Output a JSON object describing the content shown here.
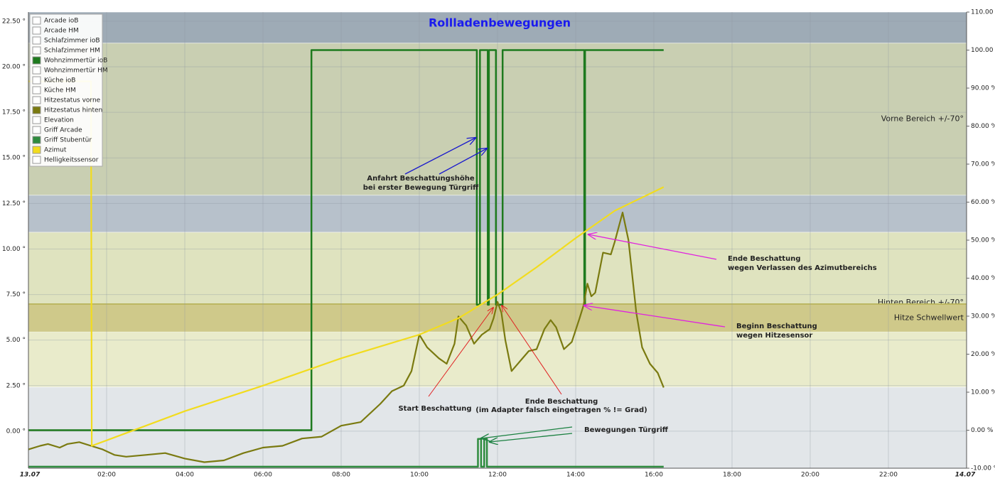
{
  "chart_data": {
    "type": "line",
    "title": "Rollladenbewegungen",
    "xlim": [
      0,
      24
    ],
    "xticks": [
      {
        "value": 0,
        "label": "13.07"
      },
      {
        "value": 2,
        "label": "02:00"
      },
      {
        "value": 4,
        "label": "04:00"
      },
      {
        "value": 6,
        "label": "06:00"
      },
      {
        "value": 8,
        "label": "08:00"
      },
      {
        "value": 10,
        "label": "10:00"
      },
      {
        "value": 12,
        "label": "12:00"
      },
      {
        "value": 14,
        "label": "14:00"
      },
      {
        "value": 16,
        "label": "16:00"
      },
      {
        "value": 18,
        "label": "18:00"
      },
      {
        "value": 20,
        "label": "20:00"
      },
      {
        "value": 22,
        "label": "22:00"
      },
      {
        "value": 24,
        "label": "14.07"
      }
    ],
    "ylim": [
      -2.03,
      23.0
    ],
    "yticks": [
      {
        "value": 0,
        "label": "0.00 °"
      },
      {
        "value": 2.5,
        "label": "2.50 °"
      },
      {
        "value": 5,
        "label": "5.00 °"
      },
      {
        "value": 7.5,
        "label": "7.50 °"
      },
      {
        "value": 10,
        "label": "10.00 °"
      },
      {
        "value": 12.5,
        "label": "12.50 °"
      },
      {
        "value": 15,
        "label": "15.00 °"
      },
      {
        "value": 17.5,
        "label": "17.50 °"
      },
      {
        "value": 20,
        "label": "20.00 °"
      },
      {
        "value": 22.5,
        "label": "22.50 °"
      }
    ],
    "y2lim": [
      -10,
      110
    ],
    "y2ticks": [
      {
        "value": -10,
        "label": "-10.00 %"
      },
      {
        "value": 0,
        "label": "0.00 %"
      },
      {
        "value": 10,
        "label": "10.00 %"
      },
      {
        "value": 20,
        "label": "20.00 %"
      },
      {
        "value": 30,
        "label": "30.00 %"
      },
      {
        "value": 40,
        "label": "40.00 %"
      },
      {
        "value": 50,
        "label": "50.00 %"
      },
      {
        "value": 60,
        "label": "60.00 %"
      },
      {
        "value": 70,
        "label": "70.00 %"
      },
      {
        "value": 80,
        "label": "80.00 %"
      },
      {
        "value": 90,
        "label": "90.00 %"
      },
      {
        "value": 100,
        "label": "100.00 %"
      },
      {
        "value": 110,
        "label": "110.00 %"
      }
    ],
    "grid": true,
    "legend": "top-left",
    "bands": [
      {
        "from": 21.3,
        "to": 23.0,
        "color": "#9eabb6"
      },
      {
        "from": 12.95,
        "to": 21.3,
        "color": "#c9cfb2",
        "label": "Vorne Bereich +/-70°"
      },
      {
        "from": 10.92,
        "to": 12.95,
        "color": "#b7c1cb"
      },
      {
        "from": 6.98,
        "to": 10.92,
        "color": "#dfe3bf",
        "label": "Hinten Bereich +/-70°"
      },
      {
        "from": 5.46,
        "to": 6.98,
        "color": "#cfc98a",
        "label": "Hitze Schwellwert",
        "label_color": "#7a7a10"
      },
      {
        "from": 2.42,
        "to": 5.46,
        "color": "#e9ebcb"
      },
      {
        "from": -2.03,
        "to": 2.42,
        "color": "#e2e6e9"
      }
    ],
    "series": [
      {
        "name": "Arcade ioB"
      },
      {
        "name": "Arcade HM"
      },
      {
        "name": "Schlafzimmer ioB"
      },
      {
        "name": "Schlafzimmer HM"
      },
      {
        "name": "Wohnzimmertür ioB",
        "color": "#1e7a1e",
        "axis": "y2",
        "x": [
          0,
          7.24,
          7.24,
          11.47,
          11.47,
          11.55,
          11.55,
          11.75,
          11.75,
          11.78,
          11.78,
          11.96,
          11.96,
          12.13,
          12.13,
          14.22,
          14.22,
          14.24,
          14.24,
          16.25
        ],
        "values": [
          0,
          0,
          100,
          100,
          33,
          33,
          100,
          100,
          33,
          33,
          100,
          100,
          33,
          33,
          100,
          100,
          33,
          33,
          100,
          100
        ]
      },
      {
        "name": "Wohnzimmertür HM"
      },
      {
        "name": "Küche ioB"
      },
      {
        "name": "Küche HM"
      },
      {
        "name": "Hitzestatus vorne"
      },
      {
        "name": "Hitzestatus hinten",
        "color": "#7a7a10",
        "x": [
          0,
          0.3,
          0.5,
          0.8,
          1.0,
          1.3,
          1.6,
          1.9,
          2.2,
          2.5,
          3.0,
          3.5,
          4.0,
          4.5,
          5.0,
          5.5,
          6.0,
          6.5,
          7.0,
          7.5,
          8.0,
          8.5,
          9.0,
          9.3,
          9.6,
          9.8,
          10.0,
          10.2,
          10.5,
          10.7,
          10.9,
          11.0,
          11.2,
          11.4,
          11.6,
          11.8,
          11.9,
          12.0,
          12.1,
          12.2,
          12.36,
          12.6,
          12.8,
          13.0,
          13.2,
          13.36,
          13.5,
          13.7,
          13.9,
          14.1,
          14.2,
          14.3,
          14.4,
          14.5,
          14.7,
          14.9,
          15.0,
          15.2,
          15.35,
          15.55,
          15.7,
          15.9,
          16.1,
          16.25
        ],
        "values": [
          -1.0,
          -0.8,
          -0.7,
          -0.9,
          -0.7,
          -0.6,
          -0.8,
          -1.0,
          -1.3,
          -1.4,
          -1.3,
          -1.2,
          -1.5,
          -1.7,
          -1.6,
          -1.2,
          -0.9,
          -0.8,
          -0.4,
          -0.3,
          0.3,
          0.5,
          1.5,
          2.2,
          2.5,
          3.3,
          5.3,
          4.6,
          4.0,
          3.7,
          4.8,
          6.3,
          5.8,
          4.8,
          5.3,
          5.6,
          6.2,
          7.1,
          6.5,
          5.0,
          3.3,
          3.9,
          4.4,
          4.5,
          5.6,
          6.1,
          5.7,
          4.5,
          4.9,
          6.2,
          6.9,
          8.1,
          7.4,
          7.6,
          9.8,
          9.7,
          10.4,
          12.0,
          10.5,
          6.5,
          4.6,
          3.7,
          3.2,
          2.4
        ]
      },
      {
        "name": "Elevation"
      },
      {
        "name": "Griff Arcade"
      },
      {
        "name": "Griff Stubentür",
        "color": "#2e8b3e",
        "axis": "y2",
        "x": [
          0,
          11.5,
          11.5,
          11.58,
          11.58,
          11.66,
          11.66,
          11.73,
          11.73,
          16.25
        ],
        "values": [
          -9.6,
          -9.6,
          -2.3,
          -2.3,
          -9.6,
          -9.6,
          -2.3,
          -2.3,
          -9.6,
          -9.6
        ]
      },
      {
        "name": "Azimut",
        "color": "#f2dc1e",
        "x": [
          0,
          1.6,
          1.62,
          2,
          4,
          6,
          8,
          10,
          11,
          12,
          13,
          14,
          15,
          16.25
        ],
        "values": [
          19.2,
          19.2,
          -0.8,
          -0.5,
          1.1,
          2.5,
          4.0,
          5.3,
          6.2,
          7.5,
          9.0,
          10.6,
          12.1,
          13.4
        ]
      },
      {
        "name": "Helligkeitssensor"
      }
    ],
    "annotations": [
      {
        "lines": [
          "Anfahrt Beschattungshöhe",
          "bei erster Bewegung Türgriff"
        ],
        "color": "#1a1acc"
      },
      {
        "lines": [
          "Start Beschattung"
        ],
        "color": "#e02020"
      },
      {
        "lines": [
          "Ende Beschattung",
          "(im Adapter falsch eingetragen % != Grad)"
        ],
        "color": "#e02020"
      },
      {
        "lines": [
          "Ende Beschattung",
          "wegen Verlassen des Azimutbereichs"
        ],
        "color": "#e020e0"
      },
      {
        "lines": [
          "Beginn Beschattung",
          "wegen Hitzesensor"
        ],
        "color": "#e020e0"
      },
      {
        "lines": [
          "Bewegungen Türgriff"
        ],
        "color": "#1a8040"
      }
    ]
  }
}
